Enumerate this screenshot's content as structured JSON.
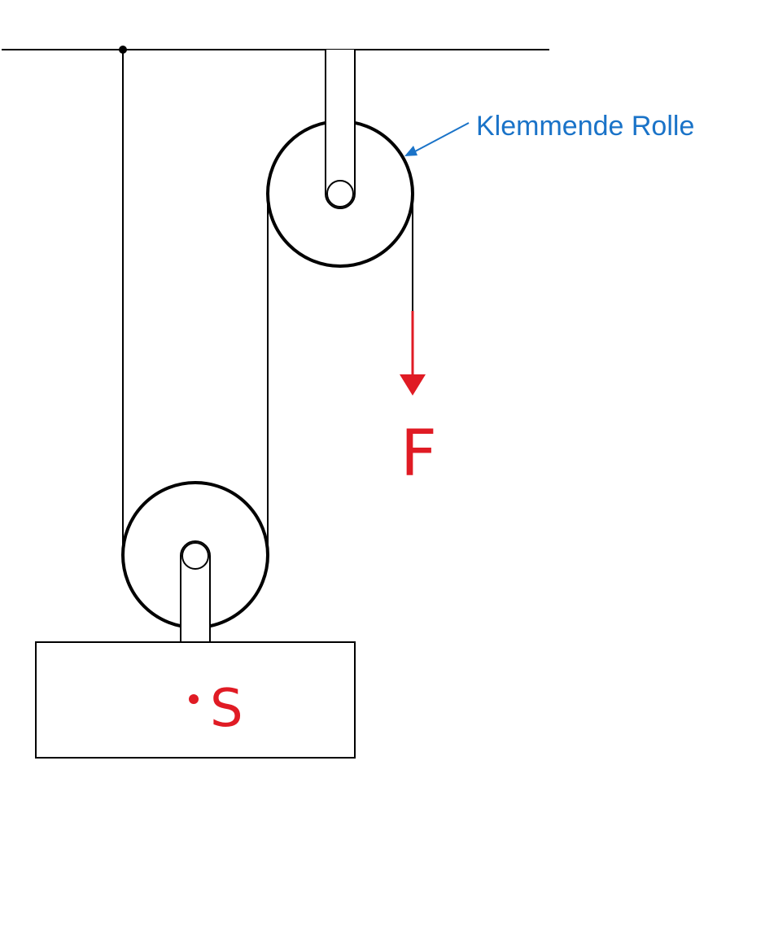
{
  "labels": {
    "pulley_annotation": "Klemmende Rolle",
    "force": "F",
    "center_of_mass": "S"
  },
  "colors": {
    "line": "#000000",
    "annotation": "#1a73c8",
    "force": "#e01b24"
  }
}
